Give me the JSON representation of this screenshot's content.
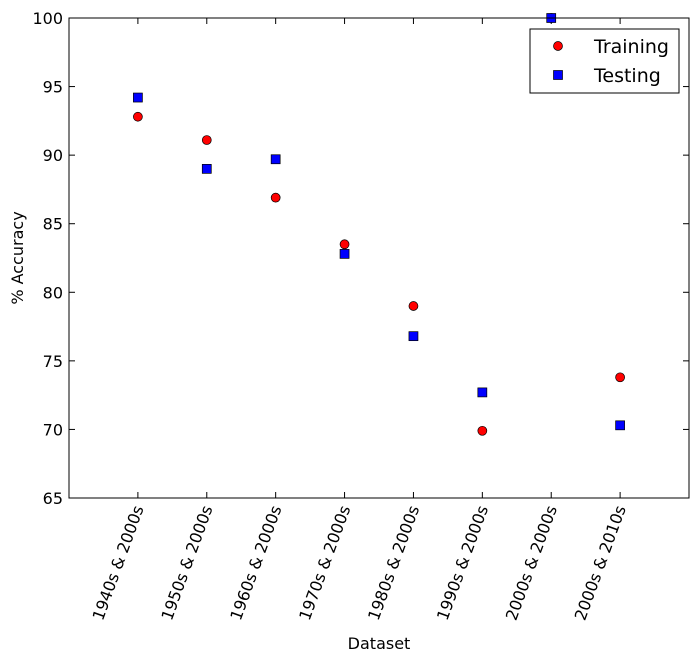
{
  "chart_data": {
    "type": "scatter",
    "title": "",
    "xlabel": "Dataset",
    "ylabel": "% Accuracy",
    "categories": [
      "1940s & 2000s",
      "1950s & 2000s",
      "1960s & 2000s",
      "1970s & 2000s",
      "1980s & 2000s",
      "1990s & 2000s",
      "2000s & 2000s",
      "2000s & 2010s"
    ],
    "ylim": [
      65,
      100
    ],
    "yticks": [
      65,
      70,
      75,
      80,
      85,
      90,
      95,
      100
    ],
    "grid": false,
    "legend_position": "top-right",
    "series": [
      {
        "name": "Training",
        "marker": "circle",
        "color": "#ff0000",
        "values": [
          92.8,
          91.1,
          86.9,
          83.5,
          79.0,
          69.9,
          100.0,
          73.8
        ]
      },
      {
        "name": "Testing",
        "marker": "square",
        "color": "#0000ff",
        "values": [
          94.2,
          89.0,
          89.7,
          82.8,
          76.8,
          72.7,
          100.0,
          70.3
        ]
      }
    ]
  }
}
